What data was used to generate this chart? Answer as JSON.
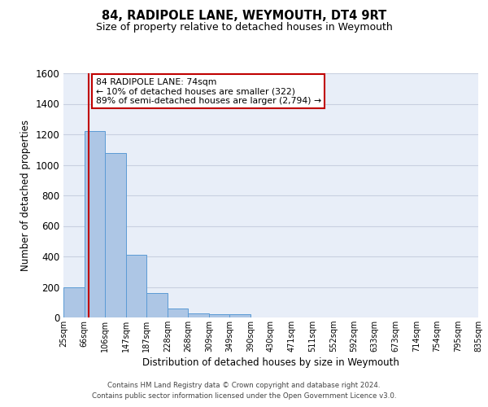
{
  "title": "84, RADIPOLE LANE, WEYMOUTH, DT4 9RT",
  "subtitle": "Size of property relative to detached houses in Weymouth",
  "xlabel": "Distribution of detached houses by size in Weymouth",
  "ylabel": "Number of detached properties",
  "bin_edges": [
    25,
    66,
    106,
    147,
    187,
    228,
    268,
    309,
    349,
    390,
    430,
    471,
    511,
    552,
    592,
    633,
    673,
    714,
    754,
    795,
    835
  ],
  "bar_heights": [
    200,
    1220,
    1075,
    410,
    160,
    60,
    25,
    20,
    20,
    0,
    0,
    0,
    0,
    0,
    0,
    0,
    0,
    0,
    0,
    0
  ],
  "bar_color": "#adc6e5",
  "bar_edge_color": "#5b9bd5",
  "property_line_x": 74,
  "property_line_color": "#c00000",
  "ylim": [
    0,
    1600
  ],
  "yticks": [
    0,
    200,
    400,
    600,
    800,
    1000,
    1200,
    1400,
    1600
  ],
  "annotation_text_line1": "84 RADIPOLE LANE: 74sqm",
  "annotation_text_line2": "← 10% of detached houses are smaller (322)",
  "annotation_text_line3": "89% of semi-detached houses are larger (2,794) →",
  "annotation_box_color": "#ffffff",
  "annotation_box_edge_color": "#c00000",
  "footer_line1": "Contains HM Land Registry data © Crown copyright and database right 2024.",
  "footer_line2": "Contains public sector information licensed under the Open Government Licence v3.0.",
  "background_color": "#e8eef8",
  "grid_color": "#c8d0e0",
  "tick_labels": [
    "25sqm",
    "66sqm",
    "106sqm",
    "147sqm",
    "187sqm",
    "228sqm",
    "268sqm",
    "309sqm",
    "349sqm",
    "390sqm",
    "430sqm",
    "471sqm",
    "511sqm",
    "552sqm",
    "592sqm",
    "633sqm",
    "673sqm",
    "714sqm",
    "754sqm",
    "795sqm",
    "835sqm"
  ]
}
